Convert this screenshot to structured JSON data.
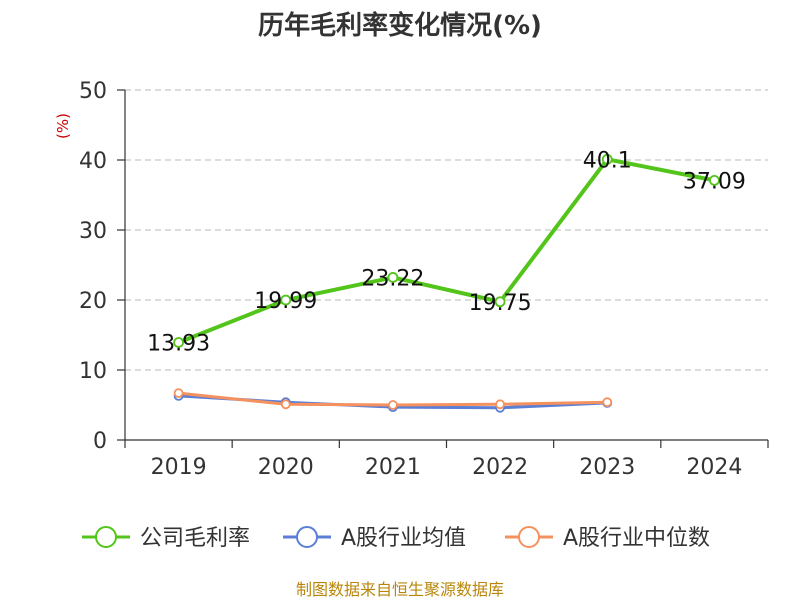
{
  "colors": {
    "gross_margin": "#52c41a",
    "industry_avg": "#5b7fd6",
    "industry_median": "#f4915e",
    "grid": "#c8c8c8",
    "axis": "#333333",
    "unit": "#cc0000",
    "source": "#b8860b"
  },
  "chart_data": {
    "type": "line",
    "title": "历年毛利率变化情况(%)",
    "ylabel": "(%)",
    "categories": [
      "2019",
      "2020",
      "2021",
      "2022",
      "2023",
      "2024"
    ],
    "ylim": [
      0,
      50
    ],
    "yticks": [
      0,
      10,
      20,
      30,
      40,
      50
    ],
    "grid": true,
    "legend_position": "bottom",
    "series": [
      {
        "name": "公司毛利率",
        "values": [
          13.93,
          19.99,
          23.22,
          19.75,
          40.1,
          37.09
        ],
        "labels": [
          "13.93",
          "19.99",
          "23.22",
          "19.75",
          "40.1",
          "37.09"
        ]
      },
      {
        "name": "A股行业均值",
        "values": [
          6.3,
          5.4,
          4.7,
          4.6,
          5.3,
          null
        ]
      },
      {
        "name": "A股行业中位数",
        "values": [
          6.7,
          5.1,
          5.0,
          5.1,
          5.4,
          null
        ]
      }
    ]
  },
  "source": "制图数据来自恒生聚源数据库"
}
